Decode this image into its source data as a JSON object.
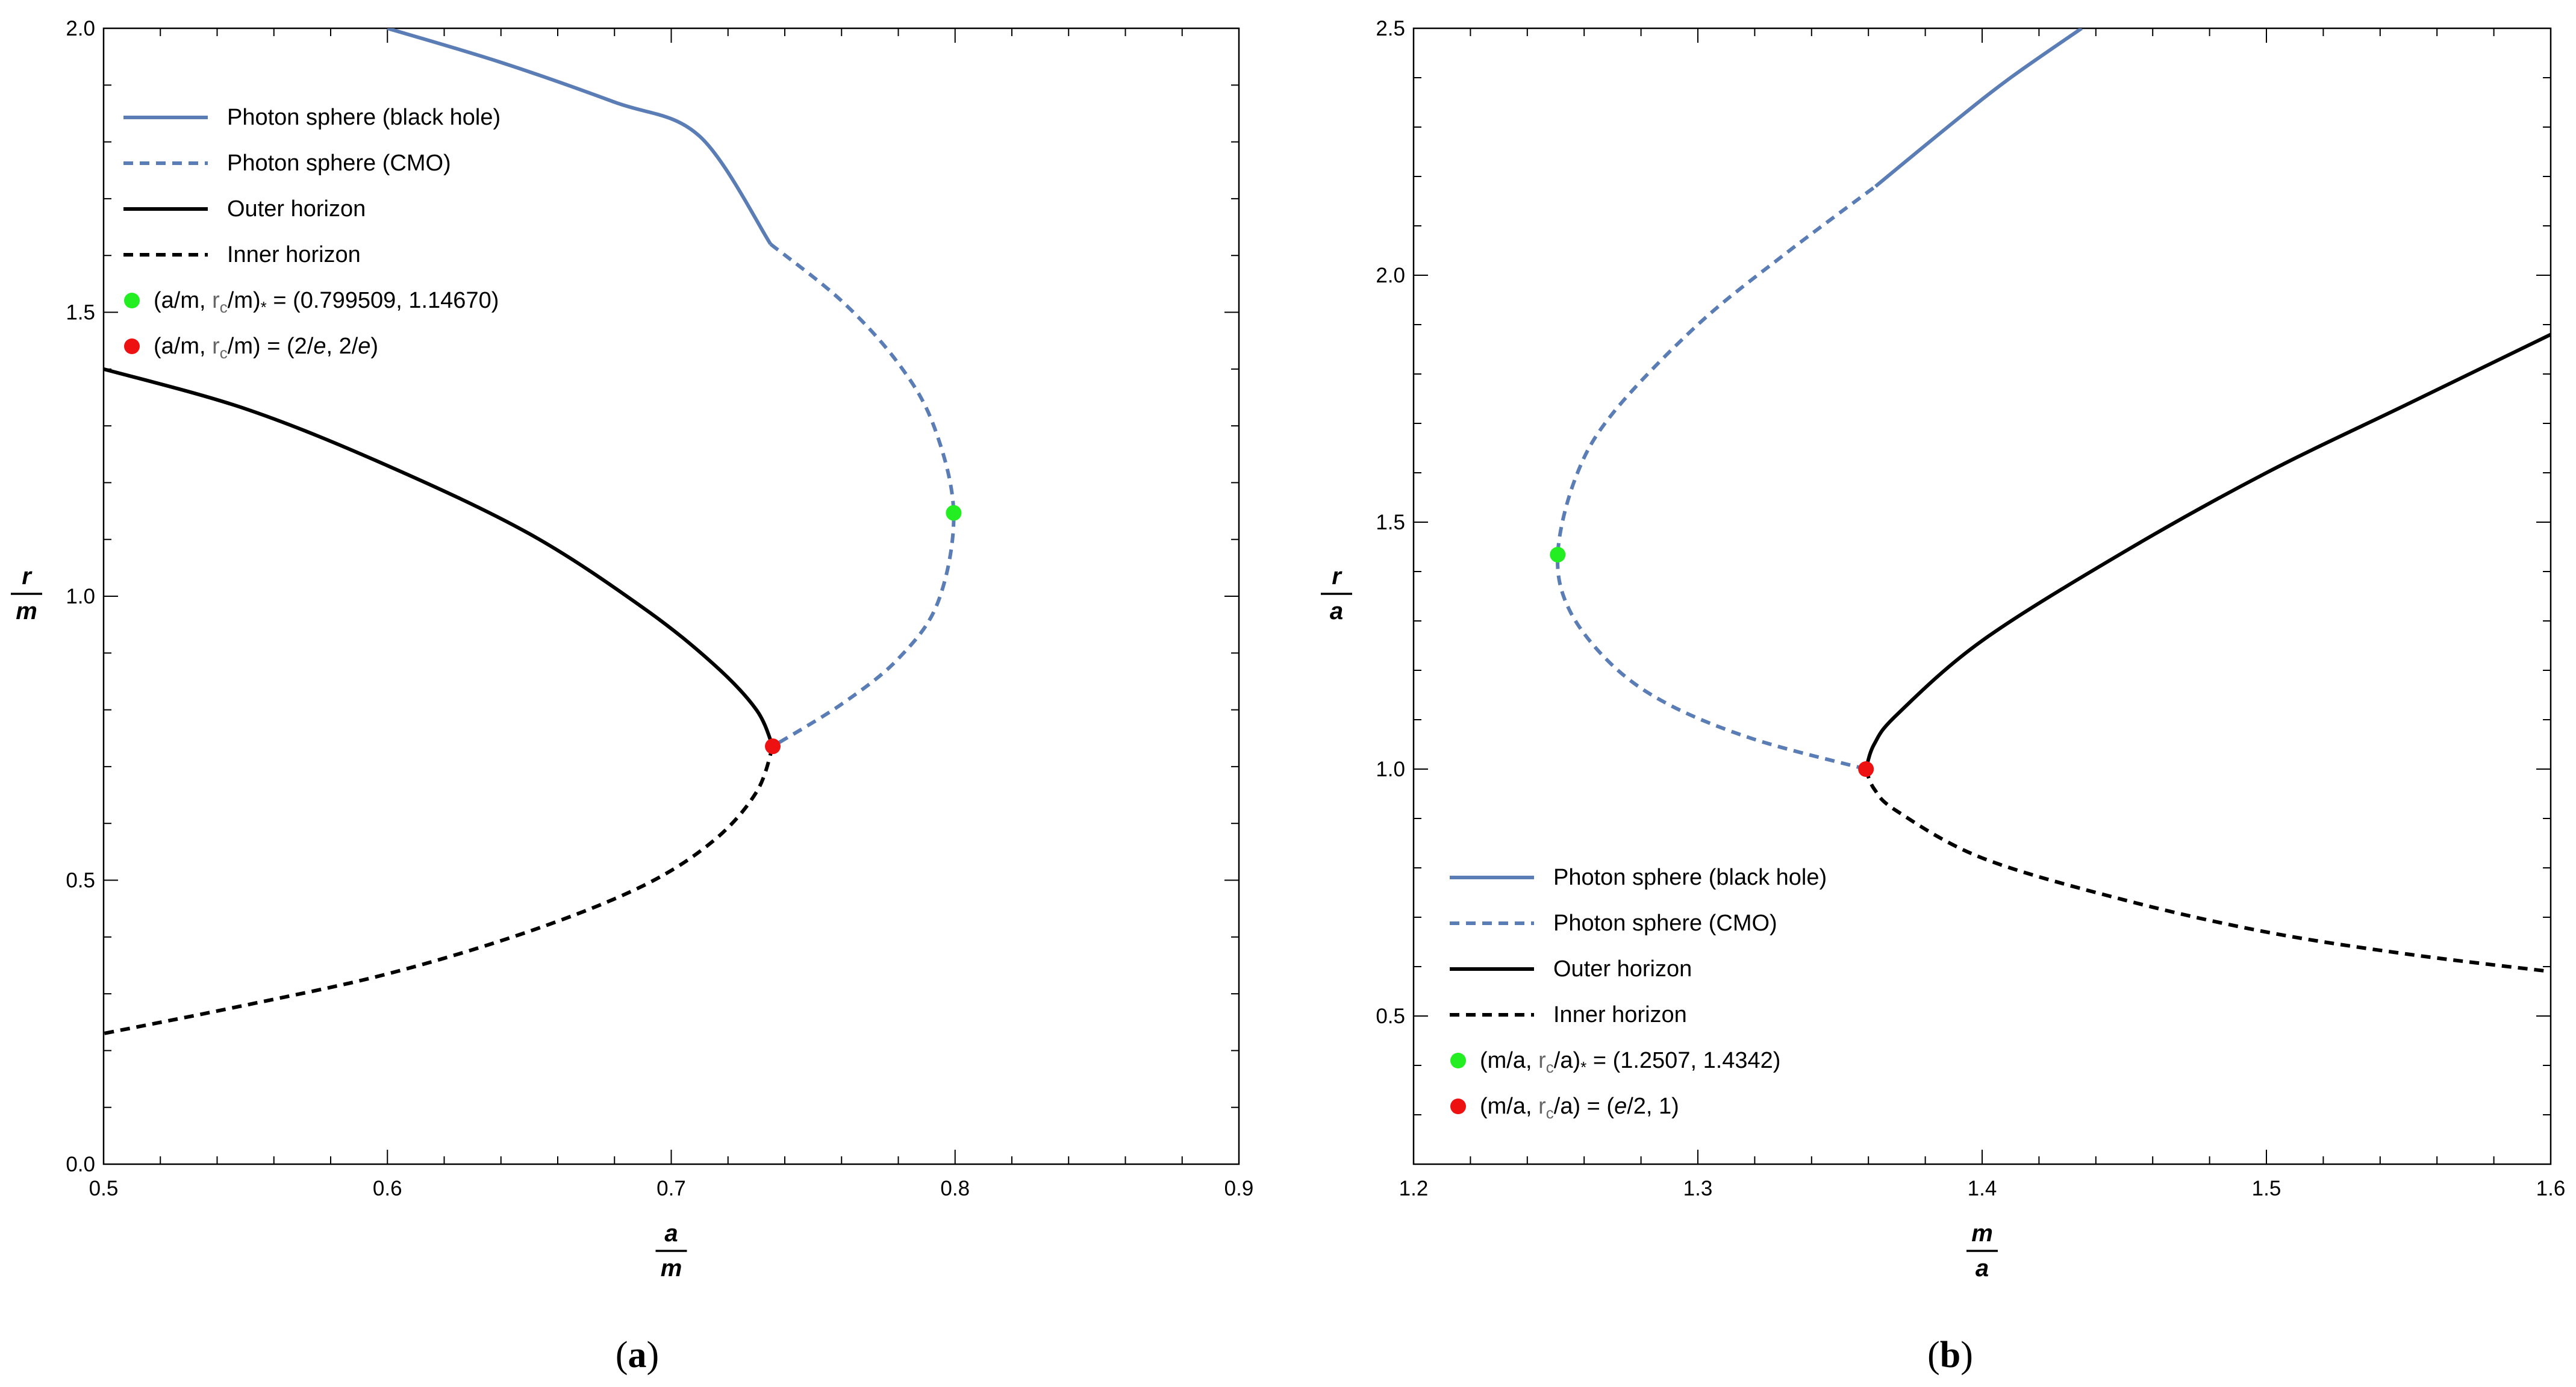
{
  "colors": {
    "photon_blue": "#5b7db5",
    "horizon_black": "#000000",
    "critical_green": "#22ee22",
    "extremal_red": "#ee1111"
  },
  "chart_data": [
    {
      "panel": "a",
      "type": "line",
      "caption_label": "a",
      "xlabel": {
        "num": "a",
        "den": "m"
      },
      "ylabel": {
        "num": "r",
        "den": "m"
      },
      "xlim": [
        0.5,
        0.9
      ],
      "ylim": [
        0.0,
        2.0
      ],
      "xticks": [
        "0.5",
        "0.6",
        "0.7",
        "0.8",
        "0.9"
      ],
      "yticks": [
        "0.0",
        "0.5",
        "1.0",
        "1.5",
        "2.0"
      ],
      "legend_position": "top-left",
      "legend": [
        {
          "label": "Photon sphere (black hole)",
          "style": "blue-solid"
        },
        {
          "label": "Photon sphere (CMO)",
          "style": "blue-dashed"
        },
        {
          "label": "Outer horizon",
          "style": "black-solid"
        },
        {
          "label": "Inner horizon",
          "style": "black-dashed"
        },
        {
          "label_prefix": "(a/m, ",
          "label_sub_base": "r",
          "label_sub": "c",
          "label_mid": "/m)",
          "label_star": "*",
          "label_suffix": " = (0.799509, 1.14670)",
          "style": "green-dot"
        },
        {
          "label_prefix": "(a/m, ",
          "label_sub_base": "r",
          "label_sub": "c",
          "label_mid": "/m) = (2/",
          "label_e": "e",
          "label_mid2": ", 2/",
          "label_e2": "e",
          "label_suffix": ")",
          "style": "red-dot"
        }
      ],
      "series": [
        {
          "name": "Photon sphere (black hole)",
          "style": "blue-solid",
          "points": [
            [
              0.6,
              2.0
            ],
            [
              0.64,
              1.94
            ],
            [
              0.68,
              1.87
            ],
            [
              0.71,
              1.81
            ],
            [
              0.735,
              1.62
            ]
          ]
        },
        {
          "name": "Photon sphere (CMO)",
          "style": "blue-dashed",
          "points": [
            [
              0.735,
              1.62
            ],
            [
              0.76,
              1.52
            ],
            [
              0.78,
              1.41
            ],
            [
              0.7925,
              1.3
            ],
            [
              0.799509,
              1.1467
            ],
            [
              0.794,
              0.99
            ],
            [
              0.78,
              0.89
            ],
            [
              0.76,
              0.81
            ],
            [
              0.735759,
              0.735759
            ]
          ]
        },
        {
          "name": "Outer horizon",
          "style": "black-solid",
          "points": [
            [
              0.5,
              1.4
            ],
            [
              0.55,
              1.33
            ],
            [
              0.6,
              1.23
            ],
            [
              0.65,
              1.11
            ],
            [
              0.69,
              0.98
            ],
            [
              0.715,
              0.88
            ],
            [
              0.73,
              0.8
            ],
            [
              0.735759,
              0.735759
            ]
          ]
        },
        {
          "name": "Inner horizon",
          "style": "black-dashed",
          "points": [
            [
              0.735759,
              0.735759
            ],
            [
              0.73,
              0.655
            ],
            [
              0.715,
              0.57
            ],
            [
              0.69,
              0.49
            ],
            [
              0.65,
              0.41
            ],
            [
              0.6,
              0.335
            ],
            [
              0.55,
              0.28
            ],
            [
              0.5,
              0.23
            ]
          ]
        }
      ],
      "markers": [
        {
          "name": "critical-point",
          "style": "green-dot",
          "x": 0.799509,
          "y": 1.1467
        },
        {
          "name": "extremal-point",
          "style": "red-dot",
          "x": 0.735759,
          "y": 0.735759
        }
      ]
    },
    {
      "panel": "b",
      "type": "line",
      "caption_label": "b",
      "xlabel": {
        "num": "m",
        "den": "a"
      },
      "ylabel": {
        "num": "r",
        "den": "a"
      },
      "xlim": [
        1.2,
        1.6
      ],
      "ylim": [
        0.2,
        2.5
      ],
      "xticks": [
        "1.2",
        "1.3",
        "1.4",
        "1.5",
        "1.6"
      ],
      "yticks": [
        "0.5",
        "1.0",
        "1.5",
        "2.0",
        "2.5"
      ],
      "legend_position": "bottom-left",
      "legend": [
        {
          "label": "Photon sphere (black hole)",
          "style": "blue-solid"
        },
        {
          "label": "Photon sphere (CMO)",
          "style": "blue-dashed"
        },
        {
          "label": "Outer horizon",
          "style": "black-solid"
        },
        {
          "label": "Inner horizon",
          "style": "black-dashed"
        },
        {
          "label_prefix": "(m/a, ",
          "label_sub_base": "r",
          "label_sub": "c",
          "label_mid": "/a)",
          "label_star": "*",
          "label_suffix": " = (1.2507, 1.4342)",
          "style": "green-dot"
        },
        {
          "label_prefix": "(m/a, ",
          "label_sub_base": "r",
          "label_sub": "c",
          "label_mid": "/a) = (",
          "label_e": "e",
          "label_suffix": "/2, 1)",
          "style": "red-dot"
        }
      ],
      "series": [
        {
          "name": "Photon sphere (black hole)",
          "style": "blue-solid",
          "points": [
            [
              1.3625,
              2.18
            ],
            [
              1.39,
              2.31
            ],
            [
              1.41,
              2.4
            ],
            [
              1.435,
              2.5
            ]
          ]
        },
        {
          "name": "Photon sphere (CMO)",
          "style": "blue-dashed",
          "points": [
            [
              1.359141,
              1.0
            ],
            [
              1.32,
              1.06
            ],
            [
              1.29,
              1.13
            ],
            [
              1.27,
              1.21
            ],
            [
              1.255,
              1.32
            ],
            [
              1.2507,
              1.4342
            ],
            [
              1.257,
              1.59
            ],
            [
              1.27,
              1.72
            ],
            [
              1.3,
              1.9
            ],
            [
              1.33,
              2.04
            ],
            [
              1.3625,
              2.18
            ]
          ]
        },
        {
          "name": "Outer horizon",
          "style": "black-solid",
          "points": [
            [
              1.359141,
              1.0
            ],
            [
              1.362,
              1.05
            ],
            [
              1.37,
              1.11
            ],
            [
              1.4,
              1.26
            ],
            [
              1.45,
              1.44
            ],
            [
              1.5,
              1.6
            ],
            [
              1.55,
              1.74
            ],
            [
              1.6,
              1.88
            ]
          ]
        },
        {
          "name": "Inner horizon",
          "style": "black-dashed",
          "points": [
            [
              1.359141,
              1.0
            ],
            [
              1.362,
              0.96
            ],
            [
              1.37,
              0.915
            ],
            [
              1.4,
              0.82
            ],
            [
              1.45,
              0.735
            ],
            [
              1.5,
              0.67
            ],
            [
              1.55,
              0.625
            ],
            [
              1.6,
              0.59
            ]
          ]
        }
      ],
      "markers": [
        {
          "name": "critical-point",
          "style": "green-dot",
          "x": 1.2507,
          "y": 1.4342
        },
        {
          "name": "extremal-point",
          "style": "red-dot",
          "x": 1.359141,
          "y": 1.0
        }
      ]
    }
  ]
}
